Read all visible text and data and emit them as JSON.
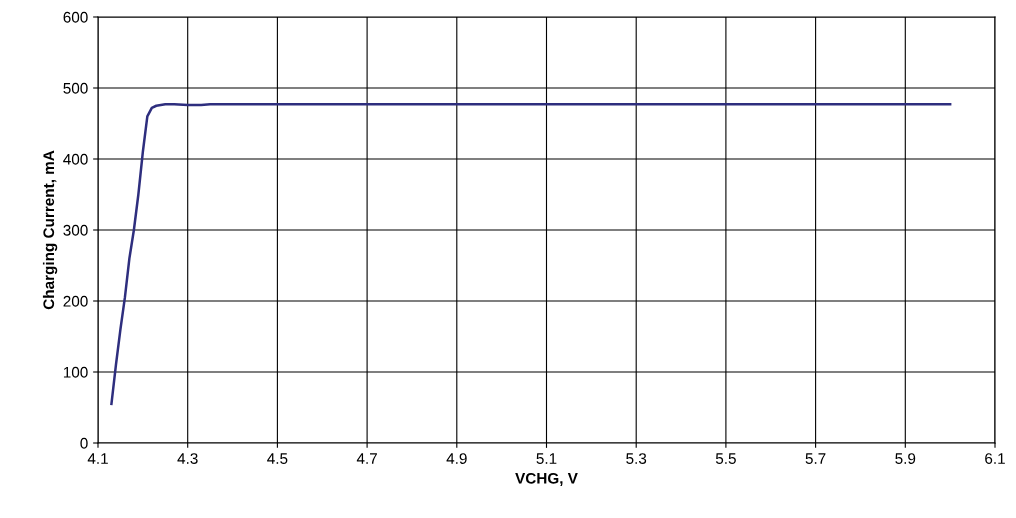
{
  "chart_data": {
    "type": "line",
    "xlabel": "VCHG, V",
    "ylabel": "Charging Current, mA",
    "series": [
      {
        "color": "#2e2e7e",
        "x": [
          4.13,
          4.14,
          4.15,
          4.16,
          4.17,
          4.18,
          4.19,
          4.2,
          4.21,
          4.22,
          4.23,
          4.25,
          4.27,
          4.3,
          4.33,
          4.35,
          5.0,
          6.0
        ],
        "values": [
          55,
          110,
          160,
          205,
          260,
          300,
          350,
          410,
          460,
          472,
          475,
          477,
          477,
          476,
          476,
          477,
          477,
          477
        ]
      }
    ],
    "xlim": [
      4.1,
      6.1
    ],
    "xticks": [
      4.1,
      4.3,
      4.5,
      4.7,
      4.9,
      5.1,
      5.3,
      5.5,
      5.7,
      5.9,
      6.1
    ],
    "ylim": [
      0,
      600
    ],
    "yticks": [
      0,
      100,
      200,
      300,
      400,
      500,
      600
    ],
    "grid": true,
    "marker": "none",
    "line_style": "solid",
    "legend": false
  }
}
